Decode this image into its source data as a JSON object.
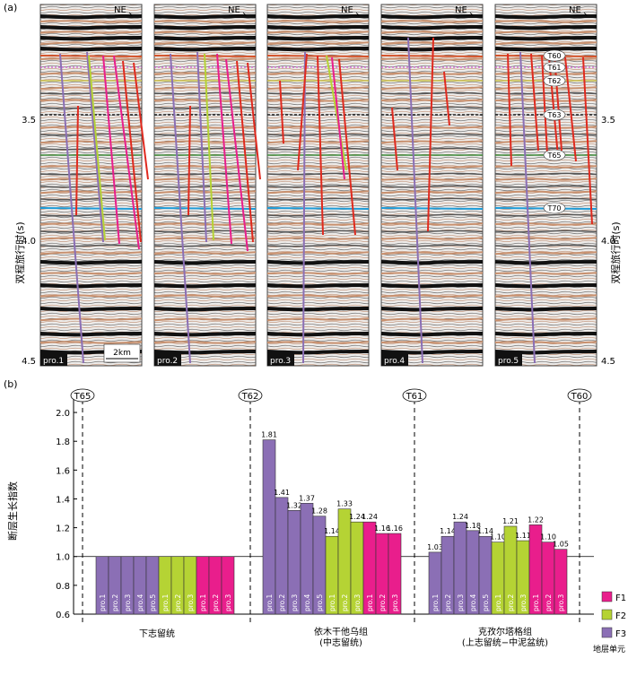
{
  "panel_a": {
    "label": "(a)",
    "direction": "NE",
    "y_axis_label": "双程旅行时(s)",
    "y_ticks": [
      "3.5",
      "4.0",
      "4.5"
    ],
    "scale_bar": "2km",
    "profiles": [
      "pro.1",
      "pro.2",
      "pro.3",
      "pro.4",
      "pro.5"
    ],
    "horizons": [
      "T60",
      "T61",
      "T62",
      "T63",
      "T65",
      "T70"
    ],
    "colors": {
      "F1": "#e91e8c",
      "F2": "#b5d334",
      "F3": "#8b6fb5",
      "fault_red": "#e02a1f",
      "T70_blue": "#1e9bd7",
      "T65_green": "#3a8a3a"
    }
  },
  "panel_b": {
    "label": "(b)",
    "y_axis_label": "断层生长指数",
    "y_ticks": [
      "0.6",
      "0.8",
      "1.0",
      "1.2",
      "1.4",
      "1.6",
      "1.8",
      "2.0"
    ],
    "x_axis_label": "地层单元",
    "boundary_labels": [
      "T65",
      "T62",
      "T61",
      "T60"
    ],
    "group_labels": [
      {
        "line1": "下志留统",
        "line2": ""
      },
      {
        "line1": "依木干他乌组",
        "line2": "(中志留统)"
      },
      {
        "line1": "克孜尔塔格组",
        "line2": "(上志留统−中泥盆统)"
      }
    ],
    "legend": [
      {
        "label": "F1",
        "color": "#e91e8c"
      },
      {
        "label": "F2",
        "color": "#b5d334"
      },
      {
        "label": "F3",
        "color": "#8b6fb5"
      }
    ]
  },
  "chart_data": {
    "type": "bar",
    "ylabel": "断层生长指数",
    "xlabel": "地层单元",
    "ylim": [
      0.6,
      2.1
    ],
    "baseline": 1.0,
    "groups": [
      {
        "name": "下志留统",
        "bars": [
          {
            "fault": "F3",
            "profile": "pro.1",
            "value": 1.0
          },
          {
            "fault": "F3",
            "profile": "pro.2",
            "value": 1.0
          },
          {
            "fault": "F3",
            "profile": "pro.3",
            "value": 1.0
          },
          {
            "fault": "F3",
            "profile": "pro.4",
            "value": 1.0
          },
          {
            "fault": "F3",
            "profile": "pro.5",
            "value": 1.0
          },
          {
            "fault": "F2",
            "profile": "pro.1",
            "value": 1.0
          },
          {
            "fault": "F2",
            "profile": "pro.2",
            "value": 1.0
          },
          {
            "fault": "F2",
            "profile": "pro.3",
            "value": 1.0
          },
          {
            "fault": "F1",
            "profile": "pro.1",
            "value": 1.0
          },
          {
            "fault": "F1",
            "profile": "pro.2",
            "value": 1.0
          },
          {
            "fault": "F1",
            "profile": "pro.3",
            "value": 1.0
          }
        ],
        "show_labels": false
      },
      {
        "name": "依木干他乌组(中志留统)",
        "bars": [
          {
            "fault": "F3",
            "profile": "pro.1",
            "value": 1.81
          },
          {
            "fault": "F3",
            "profile": "pro.2",
            "value": 1.41
          },
          {
            "fault": "F3",
            "profile": "pro.3",
            "value": 1.32
          },
          {
            "fault": "F3",
            "profile": "pro.4",
            "value": 1.37
          },
          {
            "fault": "F3",
            "profile": "pro.5",
            "value": 1.28
          },
          {
            "fault": "F2",
            "profile": "pro.1",
            "value": 1.14
          },
          {
            "fault": "F2",
            "profile": "pro.2",
            "value": 1.33
          },
          {
            "fault": "F2",
            "profile": "pro.3",
            "value": 1.24
          },
          {
            "fault": "F1",
            "profile": "pro.1",
            "value": 1.24
          },
          {
            "fault": "F1",
            "profile": "pro.2",
            "value": 1.16
          },
          {
            "fault": "F1",
            "profile": "pro.3",
            "value": 1.16
          }
        ],
        "show_labels": true
      },
      {
        "name": "克孜尔塔格组(上志留统−中泥盆统)",
        "bars": [
          {
            "fault": "F3",
            "profile": "pro.1",
            "value": 1.03
          },
          {
            "fault": "F3",
            "profile": "pro.2",
            "value": 1.14
          },
          {
            "fault": "F3",
            "profile": "pro.3",
            "value": 1.24
          },
          {
            "fault": "F3",
            "profile": "pro.4",
            "value": 1.18
          },
          {
            "fault": "F3",
            "profile": "pro.5",
            "value": 1.14
          },
          {
            "fault": "F2",
            "profile": "pro.1",
            "value": 1.1
          },
          {
            "fault": "F2",
            "profile": "pro.2",
            "value": 1.21
          },
          {
            "fault": "F2",
            "profile": "pro.3",
            "value": 1.11
          },
          {
            "fault": "F1",
            "profile": "pro.1",
            "value": 1.22
          },
          {
            "fault": "F1",
            "profile": "pro.2",
            "value": 1.1
          },
          {
            "fault": "F1",
            "profile": "pro.3",
            "value": 1.05
          }
        ],
        "show_labels": true
      }
    ]
  }
}
